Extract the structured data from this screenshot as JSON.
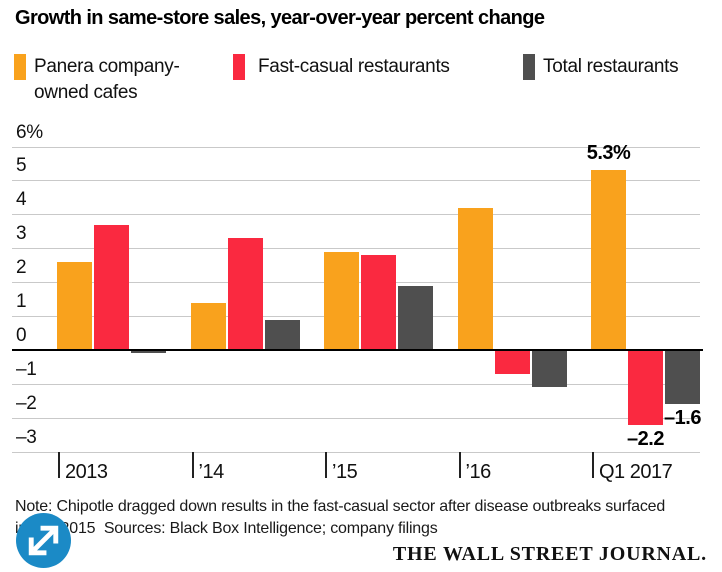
{
  "title": "Growth in same-store sales, year-over-year percent change",
  "legend": [
    {
      "label": "Panera company-owned cafes",
      "label_line1": "Panera company-",
      "label_line2": "owned cafes",
      "color": "#f9a21d"
    },
    {
      "label": "Fast-casual restaurants",
      "color": "#fa2940"
    },
    {
      "label": "Total restaurants",
      "color": "#4f4f4f"
    }
  ],
  "chart_data": {
    "type": "bar",
    "categories": [
      "2013",
      "’14",
      "’15",
      "’16",
      "Q1 2017"
    ],
    "series": [
      {
        "name": "Panera company-owned cafes",
        "color": "#f9a21d",
        "values": [
          2.6,
          1.4,
          2.9,
          4.2,
          5.3
        ]
      },
      {
        "name": "Fast-casual restaurants",
        "color": "#fa2940",
        "values": [
          3.7,
          3.3,
          2.8,
          -0.7,
          -2.2
        ]
      },
      {
        "name": "Total restaurants",
        "color": "#4f4f4f",
        "values": [
          -0.1,
          0.9,
          1.9,
          -1.1,
          -1.6
        ]
      }
    ],
    "ylim": [
      -3,
      6
    ],
    "ytick_values": [
      6,
      5,
      4,
      3,
      2,
      1,
      0,
      -1,
      -2,
      -3
    ],
    "ytick_labels": [
      "6%",
      "5",
      "4",
      "3",
      "2",
      "1",
      "0",
      "–1",
      "–2",
      "–3"
    ],
    "grid": true,
    "legend_position": "top",
    "annotations": [
      {
        "text": "5.3%",
        "series": 0,
        "group": 4
      },
      {
        "text": "–2.2",
        "series": 1,
        "group": 4
      },
      {
        "text": "–1.6",
        "series": 2,
        "group": 4
      }
    ]
  },
  "footer": {
    "note_line1": "Note: Chipotle dragged down results in the fast-casual sector after disease outbreaks surfaced",
    "note_line2": "in late 2015  Sources: Black Box Intelligence; company filings",
    "brand": "THE WALL STREET JOURNAL.",
    "expand_button_color": "#1b8ac6"
  }
}
